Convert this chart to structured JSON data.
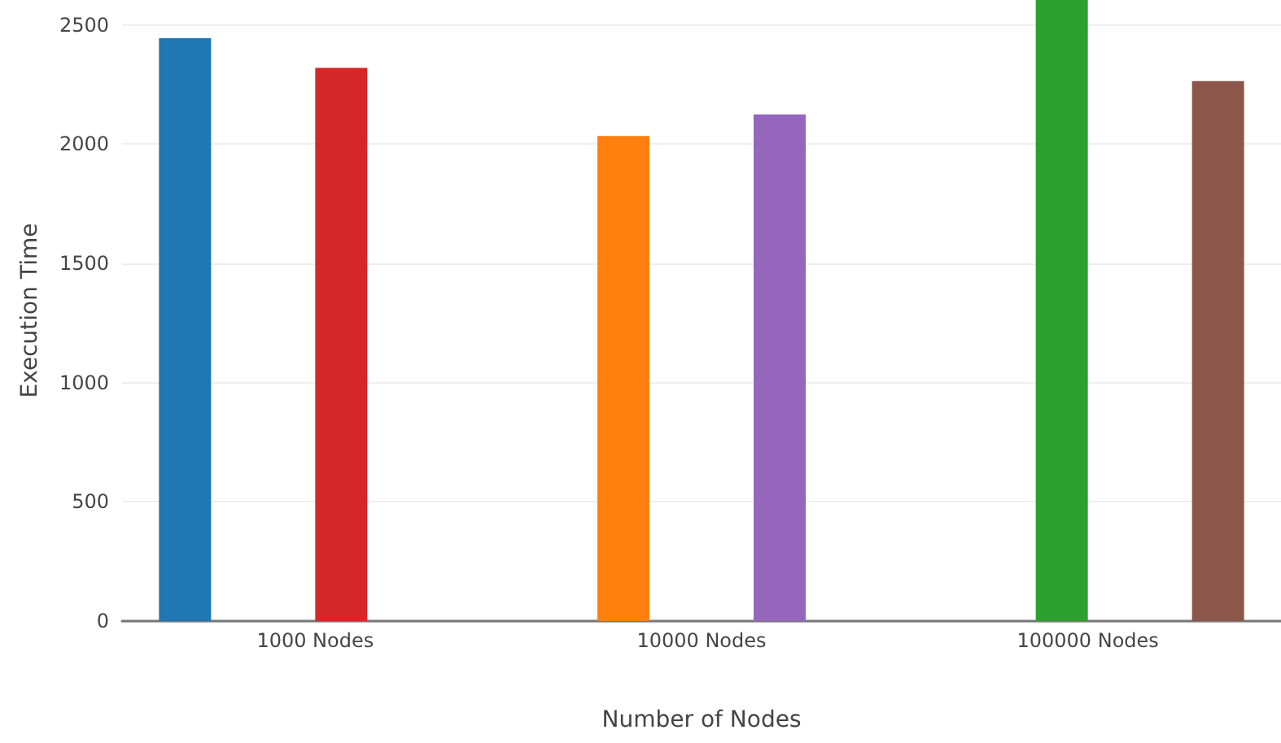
{
  "chart_data": {
    "type": "bar",
    "xlabel": "Number of Nodes",
    "ylabel": "Execution Time",
    "categories": [
      "1000 Nodes",
      "10000 Nodes",
      "100000 Nodes"
    ],
    "series": [
      {
        "color": "#1f77b4",
        "values": [
          2445,
          null,
          null
        ]
      },
      {
        "color": "#ff7f0e",
        "values": [
          null,
          2035,
          null
        ]
      },
      {
        "color": "#2ca02c",
        "values": [
          null,
          null,
          2605
        ]
      },
      {
        "color": "#d62728",
        "values": [
          2320,
          null,
          null
        ]
      },
      {
        "color": "#9467bd",
        "values": [
          null,
          2125,
          null
        ]
      },
      {
        "color": "#8c564b",
        "values": [
          null,
          null,
          2265
        ]
      }
    ],
    "ylim": [
      0,
      2605
    ],
    "yticks": [
      0,
      500,
      1000,
      1500,
      2000,
      2500
    ],
    "grid": "y"
  }
}
